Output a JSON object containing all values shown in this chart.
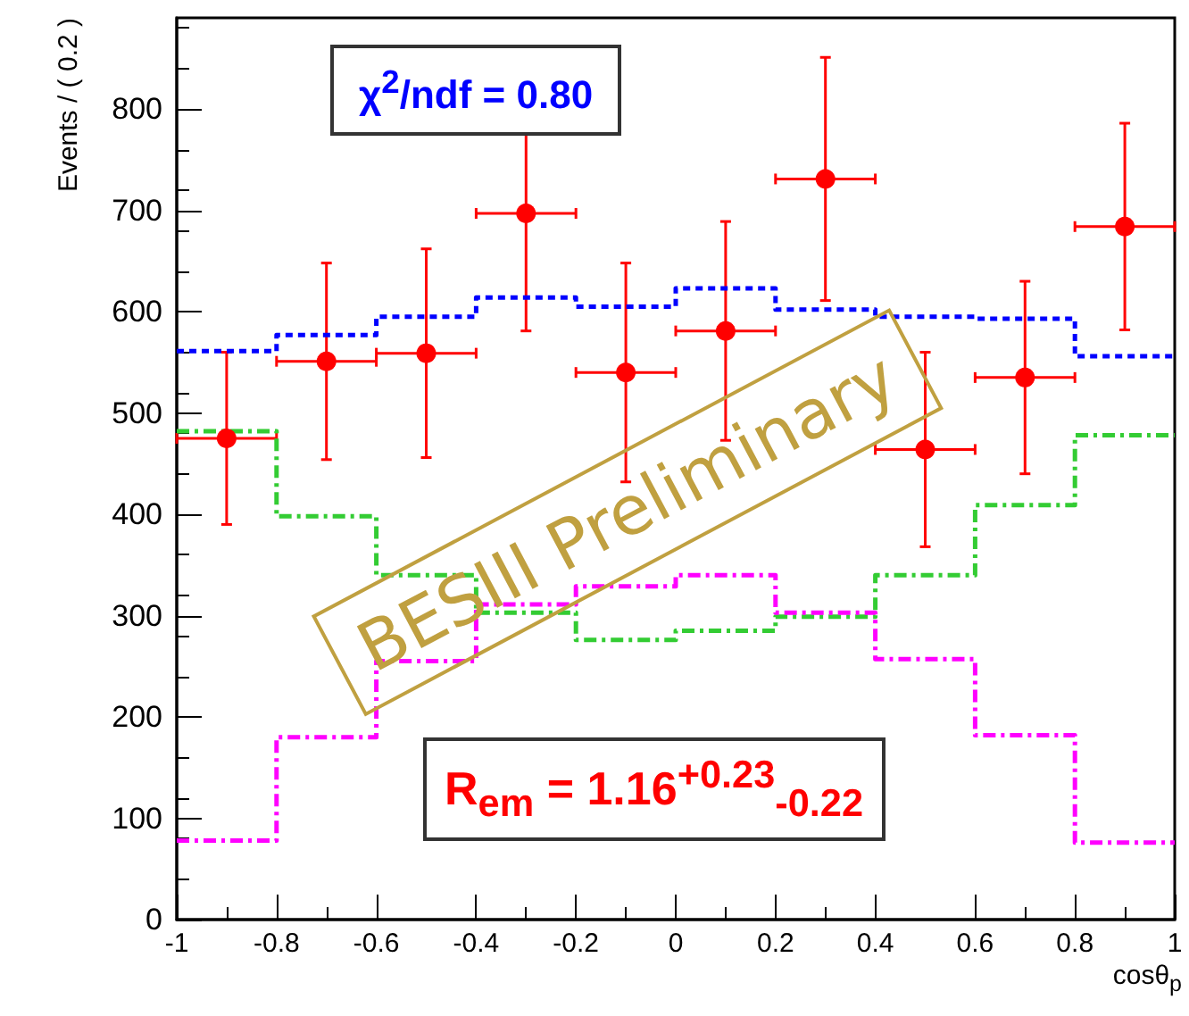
{
  "chart_data": {
    "type": "histogram",
    "xlabel": "cosθ$_{p}$",
    "ylabel": "Events / ( 0.2 )",
    "bins": [
      -1,
      -0.8,
      -0.6,
      -0.4,
      -0.2,
      0,
      0.2,
      0.4,
      0.6,
      0.8,
      1
    ],
    "series": [
      {
        "type": "histogram",
        "color": "#0000ff",
        "line_style": "dotted",
        "values": [
          561,
          577,
          595,
          614,
          605,
          623,
          602,
          595,
          593,
          556
        ]
      },
      {
        "type": "histogram",
        "color": "#33cc33",
        "line_style": "dashed",
        "values": [
          482,
          398,
          340,
          303,
          276,
          285,
          299,
          340,
          409,
          478
        ]
      },
      {
        "type": "histogram",
        "color": "#ff00ff",
        "line_style": "dashed",
        "values": [
          78,
          180,
          255,
          311,
          329,
          340,
          303,
          257,
          182,
          76
        ]
      },
      {
        "type": "scatter",
        "color": "#ff0000",
        "x": [
          -0.9,
          -0.7,
          -0.5,
          -0.3,
          -0.1,
          0.1,
          0.3,
          0.5,
          0.7,
          0.9
        ],
        "values": [
          475,
          551,
          559,
          697,
          540,
          581,
          731,
          464,
          535,
          684
        ],
        "errors": [
          85,
          97,
          103,
          116,
          108,
          108,
          120,
          96,
          95,
          102
        ],
        "xerrors": [
          0.1,
          0.1,
          0.1,
          0.1,
          0.1,
          0.1,
          0.1,
          0.1,
          0.1,
          0.1
        ]
      }
    ],
    "xlim": [
      -1,
      1
    ],
    "xticks": [
      -1,
      -0.8,
      -0.6,
      -0.4,
      -0.2,
      0,
      0.2,
      0.4,
      0.6,
      0.8,
      1
    ],
    "ylim": [
      0,
      890
    ],
    "yticks": [
      0,
      100,
      200,
      300,
      400,
      500,
      600,
      700,
      800
    ],
    "grid": false,
    "marker": "circle",
    "annotations": [
      "χ$^{2}$/ndf = 0.80",
      "R$_{em}$ = 1.16$^{+0.23}$$_{-0.22}$",
      "BESIII Preliminary"
    ]
  }
}
